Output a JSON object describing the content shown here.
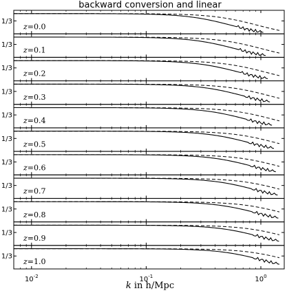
{
  "chart_data": {
    "type": "line",
    "title": "backward conversion and linear",
    "xlabel_var": "k",
    "xlabel_rest": "in h/Mpc",
    "x_scale": "log",
    "xlim": [
      0.007,
      1.6
    ],
    "x_ticks": [
      {
        "value": 0.01,
        "label": "10",
        "exp": "-2"
      },
      {
        "value": 0.1,
        "label": "10",
        "exp": "-1"
      },
      {
        "value": 1.0,
        "label": "10",
        "exp": "0"
      }
    ],
    "ytick_label": "1/3",
    "grid": false,
    "series_styles": [
      {
        "name": "",
        "style": "solid",
        "color": "#000000"
      },
      {
        "name": "",
        "style": "dashed",
        "color": "#000000"
      }
    ],
    "panels": [
      {
        "label": "z = 0.0",
        "z_prefix": "z",
        "z_value": "=0.0",
        "solid_cut": 0.55,
        "solid_end": 1.05,
        "dashed_end": 1.45
      },
      {
        "label": "z = 0.1",
        "z_prefix": "z",
        "z_value": "=0.1",
        "solid_cut": 0.6,
        "solid_end": 1.1,
        "dashed_end": 1.45
      },
      {
        "label": "z = 0.2",
        "z_prefix": "z",
        "z_value": "=0.2",
        "solid_cut": 0.65,
        "solid_end": 1.15,
        "dashed_end": 1.45
      },
      {
        "label": "z = 0.3",
        "z_prefix": "z",
        "z_value": "=0.3",
        "solid_cut": 0.7,
        "solid_end": 1.2,
        "dashed_end": 1.45
      },
      {
        "label": "z = 0.4",
        "z_prefix": "z",
        "z_value": "=0.4",
        "solid_cut": 0.75,
        "solid_end": 1.25,
        "dashed_end": 1.45
      },
      {
        "label": "z = 0.5",
        "z_prefix": "z",
        "z_value": "=0.5",
        "solid_cut": 0.8,
        "solid_end": 1.3,
        "dashed_end": 1.45
      },
      {
        "label": "z = 0.6",
        "z_prefix": "z",
        "z_value": "=0.6",
        "solid_cut": 0.85,
        "solid_end": 1.35,
        "dashed_end": 1.45
      },
      {
        "label": "z = 0.7",
        "z_prefix": "z",
        "z_value": "=0.7",
        "solid_cut": 0.9,
        "solid_end": 1.4,
        "dashed_end": 1.45
      },
      {
        "label": "z = 0.8",
        "z_prefix": "z",
        "z_value": "=0.8",
        "solid_cut": 0.95,
        "solid_end": 1.42,
        "dashed_end": 1.45
      },
      {
        "label": "z = 0.9",
        "z_prefix": "z",
        "z_value": "=0.9",
        "solid_cut": 1.0,
        "solid_end": 1.44,
        "dashed_end": 1.45
      },
      {
        "label": "z = 1.0",
        "z_prefix": "z",
        "z_value": "=1.0",
        "solid_cut": 1.05,
        "solid_end": 1.45,
        "dashed_end": 1.45
      }
    ]
  }
}
